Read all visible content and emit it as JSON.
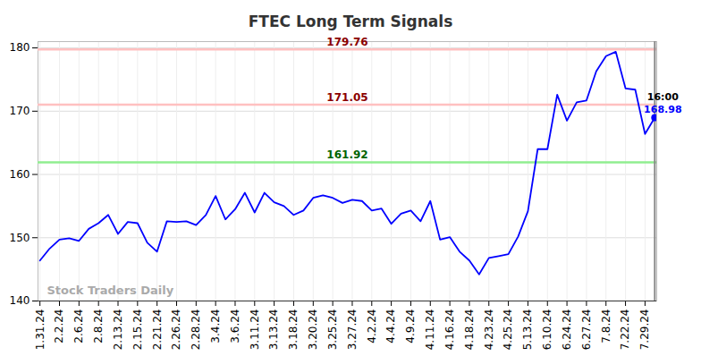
{
  "chart_data": {
    "type": "line",
    "title": "FTEC Long Term Signals",
    "watermark": "Stock Traders Daily",
    "categories": [
      "1.31.24",
      null,
      "2.2.24",
      null,
      "2.6.24",
      null,
      "2.8.24",
      null,
      "2.13.24",
      null,
      "2.15.24",
      null,
      "2.21.24",
      null,
      "2.26.24",
      null,
      "2.28.24",
      null,
      "3.4.24",
      null,
      "3.6.24",
      null,
      "3.11.24",
      null,
      "3.13.24",
      null,
      "3.18.24",
      null,
      "3.20.24",
      null,
      "3.25.24",
      null,
      "3.27.24",
      null,
      "4.2.24",
      null,
      "4.4.24",
      null,
      "4.9.24",
      null,
      "4.11.24",
      null,
      "4.16.24",
      null,
      "4.18.24",
      null,
      "4.23.24",
      null,
      "4.25.24",
      null,
      "5.13.24",
      null,
      "6.10.24",
      null,
      "6.24.24",
      null,
      "6.27.24",
      null,
      "7.8.24",
      null,
      "7.22.24",
      null,
      "7.29.24",
      null
    ],
    "values": [
      146.4,
      148.3,
      149.7,
      149.9,
      149.5,
      151.4,
      152.3,
      153.6,
      150.6,
      152.5,
      152.3,
      149.2,
      147.8,
      152.6,
      152.5,
      152.6,
      152.0,
      153.6,
      156.6,
      152.9,
      154.5,
      157.1,
      154.0,
      157.1,
      155.6,
      155.0,
      153.6,
      154.3,
      156.3,
      156.7,
      156.3,
      155.5,
      156.0,
      155.8,
      154.3,
      154.6,
      152.2,
      153.8,
      154.3,
      152.6,
      155.8,
      149.7,
      150.1,
      147.8,
      146.4,
      144.2,
      146.8,
      147.1,
      147.4,
      150.2,
      154.2,
      164.0,
      164.0,
      172.6,
      168.5,
      171.4,
      171.7,
      176.3,
      178.7,
      179.4,
      173.6,
      173.4,
      166.4,
      168.98
    ],
    "color": "#0000ff",
    "marker": "none",
    "ylim": [
      140,
      181
    ],
    "yticks": [
      140,
      150,
      160,
      170,
      180
    ],
    "grid": true,
    "reference_lines": [
      {
        "value": 179.76,
        "color": "#ffc0c0",
        "text_color": "#8b0000"
      },
      {
        "value": 171.05,
        "color": "#ffc0c0",
        "text_color": "#8b0000"
      },
      {
        "value": 161.92,
        "color": "#90ee90",
        "text_color": "#006400"
      }
    ],
    "last_point": {
      "time": "16:00",
      "value": 168.98
    }
  }
}
